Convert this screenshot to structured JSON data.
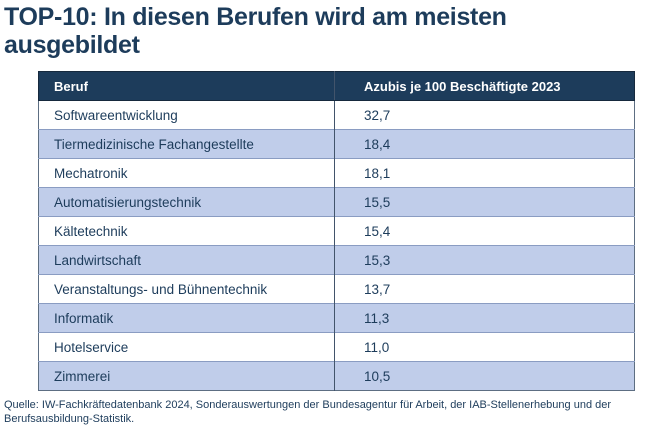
{
  "title": "TOP-10: In diesen Berufen wird am meisten ausgebildet",
  "table": {
    "columns": [
      "Beruf",
      "Azubis je 100 Beschäftigte 2023"
    ],
    "rows": [
      {
        "beruf": "Softwareentwicklung",
        "value": "32,7"
      },
      {
        "beruf": "Tiermedizinische Fachangestellte",
        "value": "18,4"
      },
      {
        "beruf": "Mechatronik",
        "value": "18,1"
      },
      {
        "beruf": "Automatisierungstechnik",
        "value": "15,5"
      },
      {
        "beruf": "Kältetechnik",
        "value": "15,4"
      },
      {
        "beruf": "Landwirtschaft",
        "value": "15,3"
      },
      {
        "beruf": "Veranstaltungs- und Bühnentechnik",
        "value": "13,7"
      },
      {
        "beruf": "Informatik",
        "value": "11,3"
      },
      {
        "beruf": "Hotelservice",
        "value": "11,0"
      },
      {
        "beruf": "Zimmerei",
        "value": "10,5"
      }
    ]
  },
  "source": {
    "line1": "Quelle: IW-Fachkräftedatenbank 2024, Sonderauswertungen der Bundesagentur für Arbeit, der IAB-Stellenerhebung und der",
    "line2": "Berufsausbildung-Statistik."
  },
  "colors": {
    "navy": "#1d3c5b",
    "row_blue": "#c0cdea",
    "row_border": "#8593a7",
    "blue_row_border": "#8a9cc2",
    "divider": "#42546b",
    "outer_border": "#5d6e82",
    "header_border": "#16293d"
  },
  "chart_data": {
    "type": "table",
    "title": "TOP-10: In diesen Berufen wird am meisten ausgebildet",
    "columns": [
      "Beruf",
      "Azubis je 100 Beschäftigte 2023"
    ],
    "categories": [
      "Softwareentwicklung",
      "Tiermedizinische Fachangestellte",
      "Mechatronik",
      "Automatisierungstechnik",
      "Kältetechnik",
      "Landwirtschaft",
      "Veranstaltungs- und Bühnentechnik",
      "Informatik",
      "Hotelservice",
      "Zimmerei"
    ],
    "values": [
      32.7,
      18.4,
      18.1,
      15.5,
      15.4,
      15.3,
      13.7,
      11.3,
      11.0,
      10.5
    ],
    "source": "Quelle: IW-Fachkräftedatenbank 2024, Sonderauswertungen der Bundesagentur für Arbeit, der IAB-Stellenerhebung und der Berufsausbildung-Statistik."
  }
}
